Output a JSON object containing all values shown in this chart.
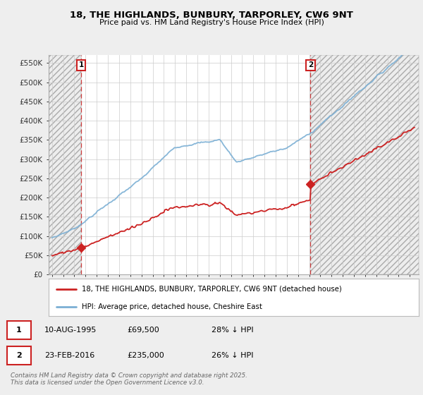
{
  "title_line1": "18, THE HIGHLANDS, BUNBURY, TARPORLEY, CW6 9NT",
  "title_line2": "Price paid vs. HM Land Registry's House Price Index (HPI)",
  "ylabel_ticks": [
    "£0",
    "£50K",
    "£100K",
    "£150K",
    "£200K",
    "£250K",
    "£300K",
    "£350K",
    "£400K",
    "£450K",
    "£500K",
    "£550K"
  ],
  "ytick_values": [
    0,
    50000,
    100000,
    150000,
    200000,
    250000,
    300000,
    350000,
    400000,
    450000,
    500000,
    550000
  ],
  "ylim": [
    0,
    570000
  ],
  "xlim_start": 1992.7,
  "xlim_end": 2025.8,
  "hpi_color": "#7BAFD4",
  "price_color": "#CC2222",
  "purchase1_date_x": 1995.6,
  "purchase1_price": 69500,
  "purchase1_label": "1",
  "purchase2_date_x": 2016.12,
  "purchase2_price": 235000,
  "purchase2_label": "2",
  "legend_label1": "18, THE HIGHLANDS, BUNBURY, TARPORLEY, CW6 9NT (detached house)",
  "legend_label2": "HPI: Average price, detached house, Cheshire East",
  "table_row1": [
    "1",
    "10-AUG-1995",
    "£69,500",
    "28% ↓ HPI"
  ],
  "table_row2": [
    "2",
    "23-FEB-2016",
    "£235,000",
    "26% ↓ HPI"
  ],
  "footnote": "Contains HM Land Registry data © Crown copyright and database right 2025.\nThis data is licensed under the Open Government Licence v3.0.",
  "bg_color": "#EEEEEE",
  "plot_bg_color": "#FFFFFF",
  "grid_color": "#CCCCCC"
}
